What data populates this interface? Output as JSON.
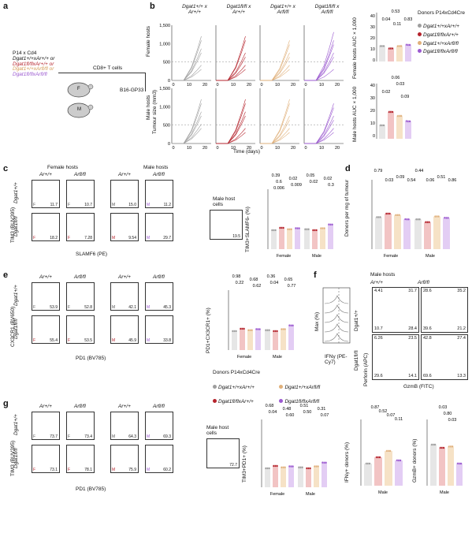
{
  "panels": {
    "a": "a",
    "b": "b",
    "c": "c",
    "d": "d",
    "e": "e",
    "f": "f",
    "g": "g"
  },
  "a": {
    "donor_lines": [
      "P14 x Cd4",
      "Dgat1+/+xAr+/+ or",
      "Dgat1fl/flxAr+/+ or",
      "Dgat1+/+xArfl/fl or",
      "Dgat1fl/flxArfl/fl"
    ],
    "cd8": "CD8+ T cells",
    "tumor": "B16-GP33",
    "female": "F",
    "male": "M"
  },
  "b": {
    "columns": [
      "Dgat1+/+ x Ar+/+",
      "Dgat1fl/fl x Ar+/+",
      "Dgat1+/+ x Arfl/fl",
      "Dgat1fl/fl x Arfl/fl"
    ],
    "row_female": "Female hosts",
    "row_male": "Male hosts",
    "ylabel": "Tumour size (mm3)",
    "xlabel": "Time (days)",
    "yticks": [
      "1,500",
      "1,000",
      "500",
      "0"
    ],
    "xticks": [
      "0",
      "10",
      "20"
    ],
    "auc_female_label": "Female hosts AUC × 1,000",
    "auc_male_label": "Male hosts AUC × 1,000",
    "auc_female_yticks": [
      "40",
      "30",
      "20",
      "10",
      "0"
    ],
    "auc_male_yticks": [
      "40",
      "30",
      "20",
      "10",
      "0"
    ],
    "pvals_female": [
      "0.53",
      "0.04",
      "0.11",
      "0.83"
    ],
    "pvals_male": [
      "0.06",
      "0.03",
      "0.02",
      "0.09"
    ],
    "legend_title": "Donors P14xCd4Cre",
    "legend": [
      "Dgat1+/+xAr+/+",
      "Dgat1fl/flxAr+/+",
      "Dgat1+/+xArfl/fl",
      "Dgat1fl/flxArfl/fl"
    ]
  },
  "c": {
    "female_hosts": "Female hosts",
    "male_hosts": "Male hosts",
    "col_labels": [
      "Ar+/+",
      "Arfl/fl",
      "Ar+/+",
      "Arfl/fl"
    ],
    "row_labels": [
      "Dgat1+/+",
      "Dgat1fl/fl"
    ],
    "ylabel": "TIM3 (BUV395)",
    "xlabel": "SLAMF6 (PE)",
    "values": [
      "11.7",
      "10.7",
      "15.0",
      "11.2",
      "18.2",
      "7.28",
      "9.54",
      "29.7"
    ],
    "host_label": "Male host cells",
    "host_value": "19.5",
    "bar_ylabel": "TIM3+SLAMF6- (%)",
    "bar_xcats": [
      "Female",
      "Male"
    ],
    "pvals": [
      "0.39",
      "0.02",
      "0.05",
      "0.02",
      "0.6",
      "0.009",
      "0.02",
      "0.3",
      "0.006"
    ]
  },
  "d": {
    "ylabel": "Donors per mg of tumour",
    "xcats": [
      "Female",
      "Male"
    ],
    "pvals": [
      "0.79",
      "0.03",
      "0.09",
      "0.54",
      "0.44",
      "0.06",
      "0.51",
      "0.86"
    ]
  },
  "e": {
    "col_labels": [
      "Ar+/+",
      "Arfl/fl",
      "Ar+/+",
      "Arfl/fl"
    ],
    "row_labels": [
      "Dgat1+/+",
      "Dgat1fl/fl"
    ],
    "ylabel": "CX3CR1 (BV650)",
    "xlabel": "PD1 (BV785)",
    "values": [
      "53.9",
      "52.8",
      "42.1",
      "45.3",
      "55.4",
      "53.5",
      "45.9",
      "33.8"
    ],
    "bar_ylabel": "PD1+CX3CR1+ (%)",
    "bar_xcats": [
      "Female",
      "Male"
    ],
    "pvals": [
      "0.98",
      "0.68",
      "0.36",
      "0.65",
      "0.22",
      "0.62",
      "0.04",
      "0.77"
    ]
  },
  "f": {
    "male_hosts": "Male hosts",
    "col_labels": [
      "Ar+/+",
      "Arfl/fl"
    ],
    "row_labels": [
      "Dgat1+/+",
      "Dgat1fl/fl"
    ],
    "hist_ylabel": "Max (%)",
    "hist_xlabel": "IFNγ (PE-Cy7)",
    "ylabel": "Perforin (APC)",
    "xlabel": "GzmB (FITC)",
    "quads": [
      [
        "4.41",
        "31.7",
        "10.7",
        "28.4"
      ],
      [
        "28.6",
        "35.2",
        "39.6",
        "21.2"
      ],
      [
        "6.26",
        "23.5",
        "29.6",
        "14.1"
      ],
      [
        "42.8",
        "27.4",
        "69.6",
        "13.3"
      ]
    ]
  },
  "g": {
    "col_labels": [
      "Ar+/+",
      "Arfl/fl",
      "Ar+/+",
      "Arfl/fl"
    ],
    "row_labels": [
      "Dgat1+/+",
      "Dgat1fl/fl"
    ],
    "ylabel": "TIM3 (BUV395)",
    "xlabel": "PD1 (BV785)",
    "values": [
      "73.7",
      "73.4",
      "64.3",
      "69.3",
      "73.1",
      "78.1",
      "75.9",
      "60.2"
    ],
    "host_label": "Male host cells",
    "host_value": "72.7",
    "bar_ylabel": "TIM3+PD1+ (%)",
    "bar_xcats": [
      "Female",
      "Male"
    ],
    "pvals": [
      "0.68",
      "0.48",
      "0.51",
      "0.31",
      "0.04",
      "0.60",
      "0.50",
      "0.07"
    ],
    "ifng_label": "IFNγ+ donors (%)",
    "ifng_pvals": [
      "0.87",
      "0.52",
      "0.07",
      "0.11"
    ],
    "gzmb_label": "GzmB+ donors (%)",
    "gzmb_pvals": [
      "0.03",
      "0.80",
      "0.03"
    ],
    "male": "Male"
  },
  "colors": {
    "c1": "#9e9e9e",
    "c2": "#b5232c",
    "c3": "#e0b07a",
    "c4": "#9b59d0",
    "bar1": "#e6e6e6",
    "bar2": "#f2c4c4",
    "bar3": "#f6e2c6",
    "bar4": "#e3cdf4"
  },
  "chart_data": [
    {
      "type": "bar",
      "title": "",
      "ylabel": "Female hosts AUC × 1,000",
      "categories": [
        "Dgat1+/+xAr+/+",
        "Dgat1fl/flxAr+/+",
        "Dgat1+/+xArfl/fl",
        "Dgat1fl/flxArfl/fl"
      ],
      "values": [
        13,
        11,
        13,
        14
      ],
      "ylim": [
        0,
        40
      ]
    },
    {
      "type": "bar",
      "title": "",
      "ylabel": "Male hosts AUC × 1,000",
      "categories": [
        "Dgat1+/+xAr+/+",
        "Dgat1fl/flxAr+/+",
        "Dgat1+/+xArfl/fl",
        "Dgat1fl/flxArfl/fl"
      ],
      "values": [
        10,
        20,
        17,
        13
      ],
      "ylim": [
        0,
        40
      ]
    }
  ]
}
